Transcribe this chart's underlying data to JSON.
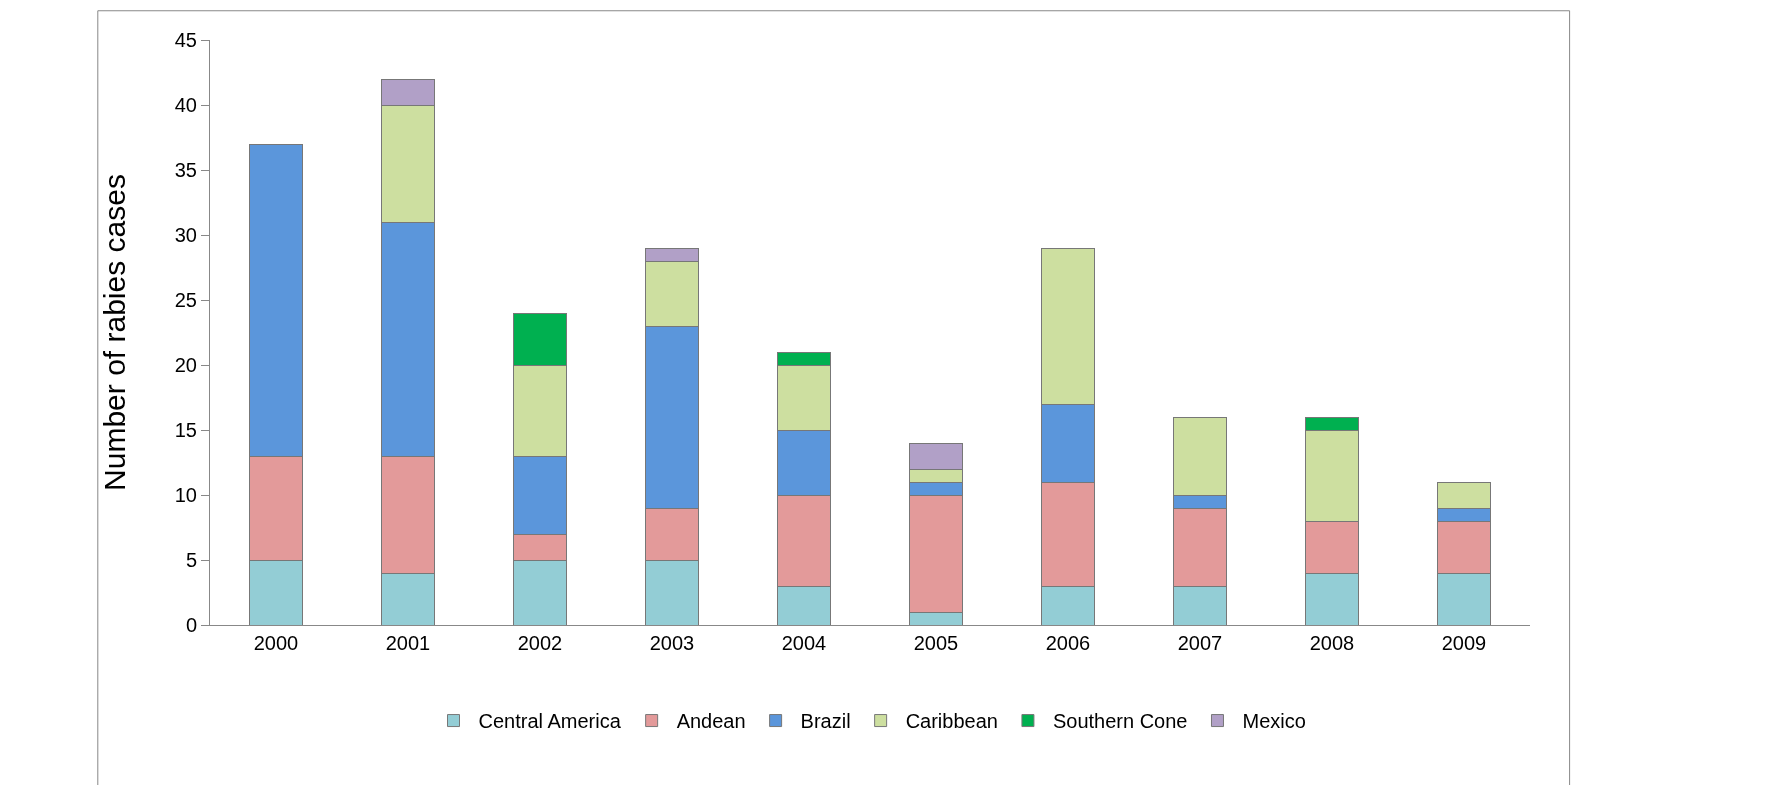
{
  "chart_data": {
    "type": "bar",
    "stacked": true,
    "ylabel": "Number of rabies cases",
    "categories": [
      "2000",
      "2001",
      "2002",
      "2003",
      "2004",
      "2005",
      "2006",
      "2007",
      "2008",
      "2009"
    ],
    "series": [
      {
        "name": "Central America",
        "color": "#93cdd5",
        "values": [
          5,
          4,
          5,
          5,
          3,
          1,
          3,
          3,
          4,
          4
        ]
      },
      {
        "name": "Andean",
        "color": "#e39a9a",
        "values": [
          8,
          9,
          2,
          4,
          7,
          9,
          8,
          6,
          4,
          4
        ]
      },
      {
        "name": "Brazil",
        "color": "#5b96db",
        "values": [
          24,
          18,
          6,
          14,
          5,
          1,
          6,
          1,
          null,
          1
        ]
      },
      {
        "name": "Caribbean",
        "color": "#cddfa0",
        "values": [
          null,
          9,
          7,
          5,
          5,
          1,
          12,
          6,
          7,
          2
        ]
      },
      {
        "name": "Southern Cone",
        "color": "#00b050",
        "values": [
          null,
          null,
          4,
          null,
          1,
          null,
          null,
          null,
          1,
          null
        ]
      },
      {
        "name": "Mexico",
        "color": "#b1a0c7",
        "values": [
          null,
          2,
          null,
          1,
          null,
          2,
          null,
          null,
          null,
          null
        ]
      }
    ],
    "ylim": [
      0,
      45
    ],
    "yticks": [
      0,
      5,
      10,
      15,
      20,
      25,
      30,
      35,
      40,
      45
    ],
    "grid": false,
    "legend": "bottom"
  }
}
